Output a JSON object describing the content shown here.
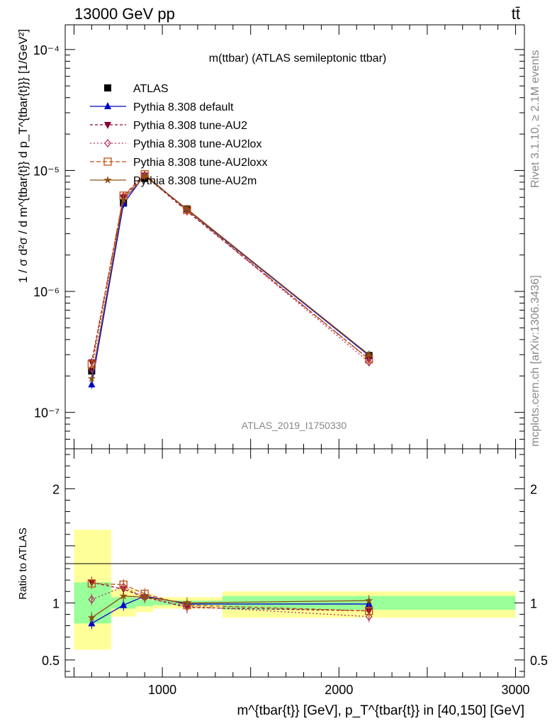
{
  "header": {
    "left": "13000 GeV pp",
    "right": "tt̄"
  },
  "side_labels": {
    "rivet": "Rivet 3.1.10, ≥ 2.1M events",
    "mcplots": "mcplots.cern.ch [arXiv:1306.3436]"
  },
  "analysis_id": "ATLAS_2019_I1750330",
  "chart_data": [
    {
      "type": "line",
      "title": "m(ttbar) (ATLAS semileptonic ttbar)",
      "ylabel": "1 / σ d²σ / d m^{tbar{t}} d p_T^{tbar{t}}} [1/GeV²]",
      "yscale": "log",
      "ylim": [
        5e-08,
        0.00016
      ],
      "xlim": [
        450,
        3050
      ],
      "y_tick_labels": [
        "10⁻⁷",
        "10⁻⁶",
        "10⁻⁵",
        "10⁻⁴"
      ],
      "y_tick_values": [
        1e-07,
        1e-06,
        1e-05,
        0.0001
      ],
      "legend_position": "top-left",
      "x": [
        600,
        780,
        900,
        1140,
        2170
      ],
      "series": [
        {
          "name": "ATLAS",
          "color": "#000000",
          "marker": "square",
          "values": [
            2.2e-07,
            5.4e-06,
            8.6e-06,
            4.8e-06,
            2.95e-07
          ]
        },
        {
          "name": "Pythia 8.308 default",
          "color": "#0000cc",
          "marker": "triangle-up",
          "values": [
            1.7e-07,
            5.3e-06,
            9.2e-06,
            4.75e-06,
            2.95e-07
          ]
        },
        {
          "name": "Pythia 8.308 tune-AU2",
          "color": "#8b0033",
          "marker": "triangle-down",
          "values": [
            2.6e-07,
            6e-06,
            9.1e-06,
            4.6e-06,
            2.75e-07
          ]
        },
        {
          "name": "Pythia 8.308 tune-AU2lox",
          "color": "#b03060",
          "marker": "diamond-open",
          "values": [
            2.3e-07,
            6.1e-06,
            9e-06,
            4.7e-06,
            2.6e-07
          ]
        },
        {
          "name": "Pythia 8.308 tune-AU2loxx",
          "color": "#c05010",
          "marker": "square-open",
          "values": [
            2.5e-07,
            6.2e-06,
            9.3e-06,
            4.7e-06,
            2.75e-07
          ]
        },
        {
          "name": "Pythia 8.308 tune-AU2m",
          "color": "#8b5010",
          "marker": "star",
          "values": [
            1.9e-07,
            5.7e-06,
            9e-06,
            4.8e-06,
            3e-07
          ]
        }
      ]
    },
    {
      "type": "line",
      "ylabel": "Ratio to ATLAS",
      "xlabel": "m^{tbar{t}} [GeV], p_T^{tbar{t}} in [40,150] [GeV]",
      "ylim": [
        0.35,
        2.35
      ],
      "xlim": [
        450,
        3050
      ],
      "y_tick_labels": [
        "0.5",
        "1",
        "2"
      ],
      "y_tick_values": [
        0.5,
        1,
        2
      ],
      "x_tick_labels": [
        "1000",
        "2000",
        "3000"
      ],
      "x_tick_values": [
        1000,
        2000,
        3000
      ],
      "bins": [
        {
          "lo": 500,
          "hi": 710,
          "green": [
            0.82,
            1.18
          ],
          "yellow": [
            0.59,
            1.64
          ]
        },
        {
          "lo": 710,
          "hi": 850,
          "green": [
            0.95,
            1.05
          ],
          "yellow": [
            0.88,
            1.12
          ]
        },
        {
          "lo": 850,
          "hi": 950,
          "green": [
            0.97,
            1.03
          ],
          "yellow": [
            0.92,
            1.08
          ]
        },
        {
          "lo": 950,
          "hi": 1340,
          "green": [
            0.98,
            1.02
          ],
          "yellow": [
            0.95,
            1.05
          ]
        },
        {
          "lo": 1340,
          "hi": 3000,
          "green": [
            0.94,
            1.06
          ],
          "yellow": [
            0.87,
            1.1
          ]
        }
      ],
      "x": [
        600,
        780,
        900,
        1140,
        2170
      ],
      "series": [
        {
          "name": "Pythia 8.308 default",
          "values": [
            0.82,
            0.98,
            1.06,
            0.99,
            0.99
          ]
        },
        {
          "name": "Pythia 8.308 tune-AU2",
          "values": [
            1.18,
            1.12,
            1.05,
            0.96,
            0.93
          ]
        },
        {
          "name": "Pythia 8.308 tune-AU2lox",
          "values": [
            1.03,
            1.14,
            1.05,
            0.97,
            0.88
          ]
        },
        {
          "name": "Pythia 8.308 tune-AU2loxx",
          "values": [
            1.17,
            1.16,
            1.08,
            0.98,
            0.93
          ]
        },
        {
          "name": "Pythia 8.308 tune-AU2m",
          "values": [
            0.87,
            1.06,
            1.05,
            1.0,
            1.02
          ]
        }
      ]
    }
  ]
}
